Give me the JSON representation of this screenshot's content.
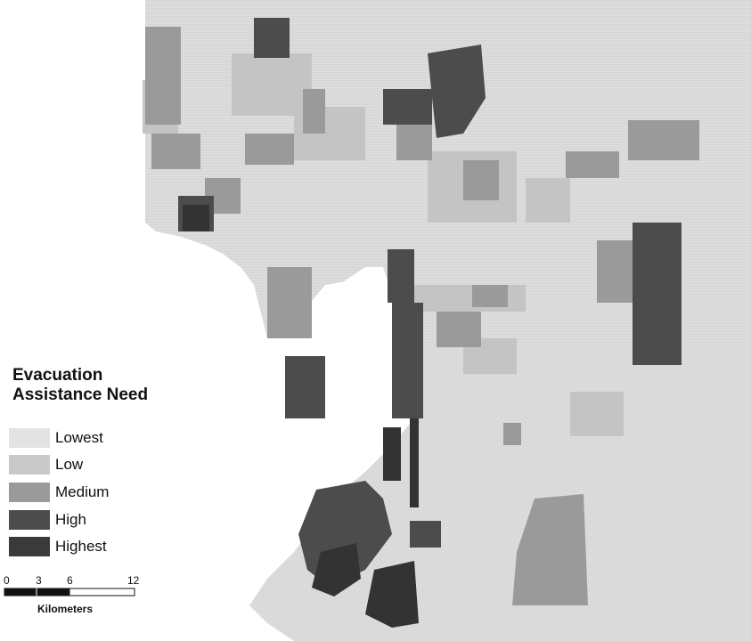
{
  "legend": {
    "title_line1": "Evacuation",
    "title_line2": "Assistance Need",
    "items": [
      {
        "label": "Lowest",
        "color": "#e3e3e3"
      },
      {
        "label": "Low",
        "color": "#c9c9c9"
      },
      {
        "label": "Medium",
        "color": "#9a9a9a"
      },
      {
        "label": "High",
        "color": "#4c4c4c"
      },
      {
        "label": "Highest",
        "color": "#3a3a3a"
      }
    ]
  },
  "scalebar": {
    "ticks": [
      "0",
      "3",
      "6",
      "12"
    ],
    "unit": "Kilometers"
  },
  "colors": {
    "water": "#ffffff",
    "lowest": "#e3e3e3",
    "low": "#c9c9c9",
    "medium": "#9a9a9a",
    "high": "#4c4c4c",
    "highest": "#3a3a3a"
  }
}
